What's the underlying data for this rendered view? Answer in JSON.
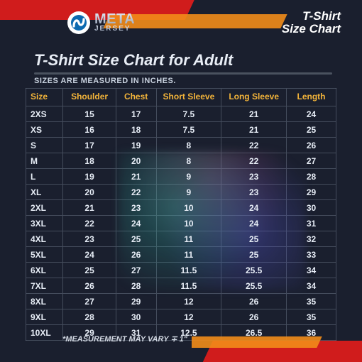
{
  "colors": {
    "page_bg": "#1a1f2e",
    "accent_red": "#d01c1c",
    "accent_orange": "#f28c1a",
    "header_text": "#c9cfdb",
    "title_text": "#e8edf5",
    "column_header": "#f3b43a",
    "cell_text": "#e7edf6",
    "grid_line": "rgba(120,130,148,0.45)"
  },
  "brand": {
    "name_top": "META",
    "name_sub": "JERSEY"
  },
  "header_label": {
    "line1": "T-Shirt",
    "line2": "Size Chart"
  },
  "title": "T-Shirt Size Chart for Adult",
  "units_note": "SIZES ARE MEASURED IN INCHES.",
  "footnote": "*MEASUREMENT MAY VARY ∓ 1\"",
  "table": {
    "type": "table",
    "columns": [
      "Size",
      "Shoulder",
      "Chest",
      "Short Sleeve",
      "Long Sleeve",
      "Length"
    ],
    "col_widths_pct": [
      12,
      17,
      13,
      21,
      21,
      16
    ],
    "header_fontsize": 12,
    "cell_fontsize": 12,
    "rows": [
      [
        "2XS",
        "15",
        "17",
        "7.5",
        "21",
        "24"
      ],
      [
        "XS",
        "16",
        "18",
        "7.5",
        "21",
        "25"
      ],
      [
        "S",
        "17",
        "19",
        "8",
        "22",
        "26"
      ],
      [
        "M",
        "18",
        "20",
        "8",
        "22",
        "27"
      ],
      [
        "L",
        "19",
        "21",
        "9",
        "23",
        "28"
      ],
      [
        "XL",
        "20",
        "22",
        "9",
        "23",
        "29"
      ],
      [
        "2XL",
        "21",
        "23",
        "10",
        "24",
        "30"
      ],
      [
        "3XL",
        "22",
        "24",
        "10",
        "24",
        "31"
      ],
      [
        "4XL",
        "23",
        "25",
        "11",
        "25",
        "32"
      ],
      [
        "5XL",
        "24",
        "26",
        "11",
        "25",
        "33"
      ],
      [
        "6XL",
        "25",
        "27",
        "11.5",
        "25.5",
        "34"
      ],
      [
        "7XL",
        "26",
        "28",
        "11.5",
        "25.5",
        "34"
      ],
      [
        "8XL",
        "27",
        "29",
        "12",
        "26",
        "35"
      ],
      [
        "9XL",
        "28",
        "30",
        "12",
        "26",
        "35"
      ],
      [
        "10XL",
        "29",
        "31",
        "12.5",
        "26.5",
        "36"
      ]
    ]
  }
}
